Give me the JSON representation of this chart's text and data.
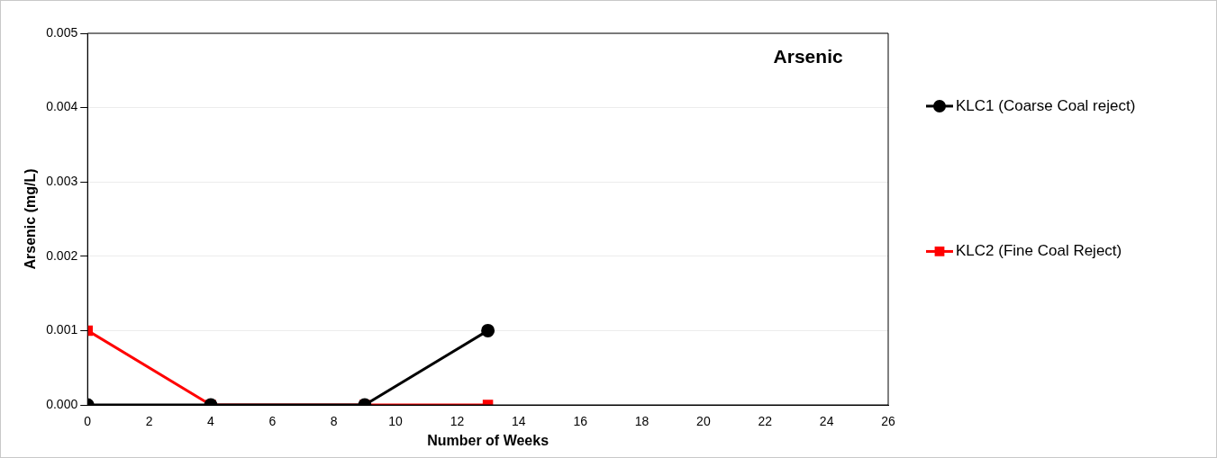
{
  "chart_data": {
    "type": "line",
    "title": "Arsenic",
    "xlabel": "Number of Weeks",
    "ylabel": "Arsenic (mg/L)",
    "x": [
      0,
      4,
      9,
      13
    ],
    "series": [
      {
        "name": "KLC1 (Coarse Coal reject)",
        "color": "#000000",
        "values": [
          0,
          0,
          0,
          0.001
        ],
        "marker": "circle"
      },
      {
        "name": "KLC2 (Fine Coal Reject)",
        "color": "#ff0000",
        "values": [
          0.001,
          0,
          0,
          0
        ],
        "marker": "square"
      }
    ],
    "xlim": [
      0,
      26
    ],
    "xticks": [
      0,
      2,
      4,
      6,
      8,
      10,
      12,
      14,
      16,
      18,
      20,
      22,
      24,
      26
    ],
    "ylim": [
      0,
      0.005
    ],
    "yticks": [
      {
        "value": 0,
        "label": "0.000"
      },
      0.001,
      0.002,
      0.003,
      0.004,
      0.005
    ],
    "grid": "y",
    "legend": "right",
    "line_style": "solid"
  }
}
